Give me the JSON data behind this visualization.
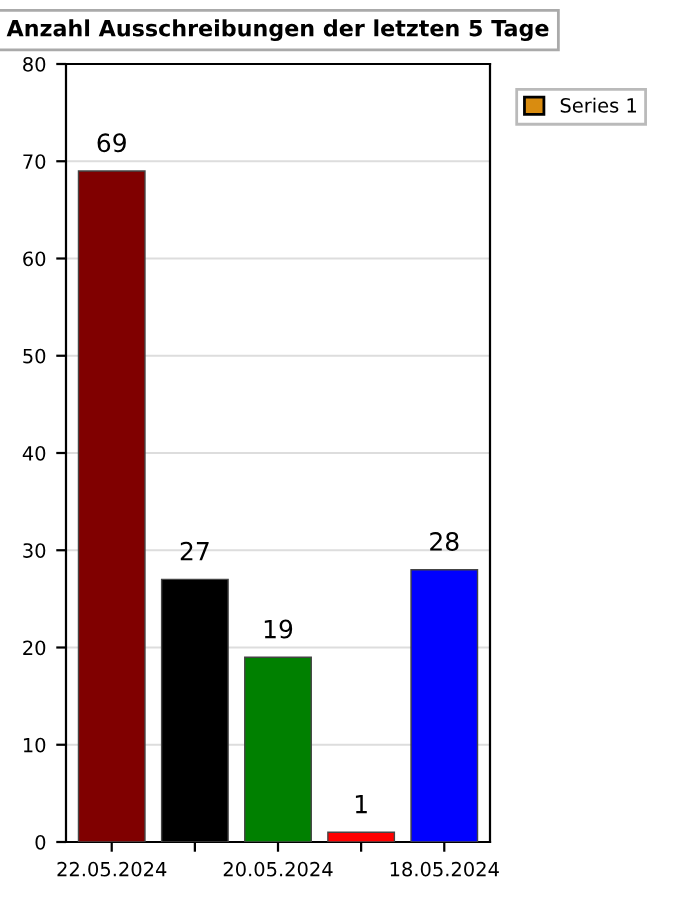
{
  "chart_data": {
    "type": "bar",
    "title": "Anzahl Ausschreibungen der letzten 5 Tage",
    "categories": [
      "22.05.2024",
      null,
      "20.05.2024",
      null,
      "18.05.2024"
    ],
    "series": [
      {
        "name": "Series 1",
        "color": "#d98c10",
        "colors": [
          "#800000",
          "#000000",
          "#008000",
          "#ff0000",
          "#0000ff"
        ],
        "values": [
          69,
          27,
          19,
          1,
          28
        ]
      }
    ],
    "ylim": [
      0,
      80
    ],
    "yticks": [
      0,
      10,
      20,
      30,
      40,
      50,
      60,
      70,
      80
    ],
    "grid": "y",
    "legend": "top right",
    "data_labels": true
  }
}
